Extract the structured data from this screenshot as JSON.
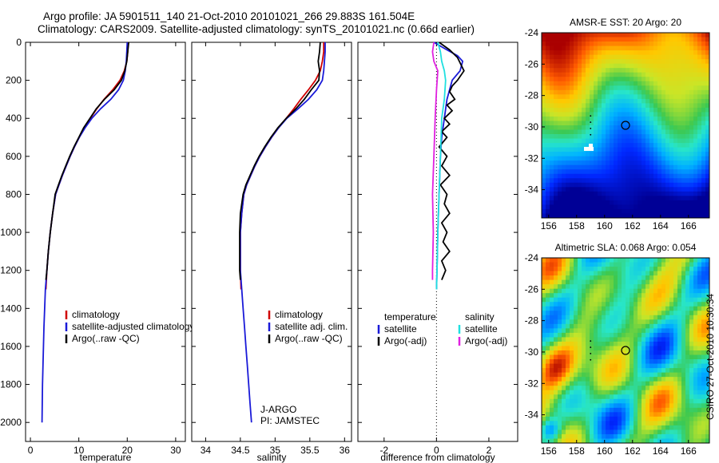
{
  "header": {
    "line1": "Argo profile: JA 5901511_140 21-Oct-2010 20101021_266 29.883S 161.504E",
    "line2": "Climatology: CARS2009. Satellite-adjusted climatology: synTS_20101021.nc (0.66d earlier)"
  },
  "credit": "CSIRO 27-Oct-2010 10:30:34",
  "colors": {
    "climatology": "#d00000",
    "satellite": "#1a1ad8",
    "argo": "#000000",
    "sal_satellite": "#20e0e0",
    "sal_argo": "#e020e0"
  },
  "chart_data": [
    {
      "type": "line",
      "id": "temperature",
      "xlabel": "temperature",
      "ylabel": "",
      "xlim": [
        -1,
        32
      ],
      "ylim": [
        2100,
        0
      ],
      "xticks": [
        "0",
        "10",
        "20",
        "30"
      ],
      "yticks": [
        "0",
        "200",
        "400",
        "600",
        "800",
        "1000",
        "1200",
        "1400",
        "1600",
        "1800",
        "2000"
      ],
      "legend": [
        "climatology",
        "satellite-adjusted climatology",
        "Argo(..raw -QC)"
      ],
      "series": [
        {
          "name": "climatology",
          "color": "#d00000",
          "points": [
            [
              20.2,
              0
            ],
            [
              20.1,
              50
            ],
            [
              19.9,
              100
            ],
            [
              19.4,
              150
            ],
            [
              18.5,
              200
            ],
            [
              17.0,
              250
            ],
            [
              15.2,
              300
            ],
            [
              13.7,
              350
            ],
            [
              12.4,
              400
            ],
            [
              11.2,
              450
            ],
            [
              10.1,
              500
            ],
            [
              9.1,
              550
            ],
            [
              8.2,
              600
            ],
            [
              7.4,
              650
            ],
            [
              6.6,
              700
            ],
            [
              5.9,
              750
            ],
            [
              5.2,
              800
            ],
            [
              4.6,
              900
            ],
            [
              4.1,
              1000
            ],
            [
              3.7,
              1100
            ],
            [
              3.4,
              1200
            ],
            [
              3.2,
              1300
            ]
          ]
        },
        {
          "name": "satellite-adjusted climatology",
          "color": "#1a1ad8",
          "points": [
            [
              20.0,
              0
            ],
            [
              19.9,
              50
            ],
            [
              19.8,
              100
            ],
            [
              19.6,
              150
            ],
            [
              19.2,
              200
            ],
            [
              18.2,
              250
            ],
            [
              16.6,
              300
            ],
            [
              14.5,
              350
            ],
            [
              12.7,
              400
            ],
            [
              11.3,
              450
            ],
            [
              10.1,
              500
            ],
            [
              9.1,
              550
            ],
            [
              8.2,
              600
            ],
            [
              7.4,
              650
            ],
            [
              6.6,
              700
            ],
            [
              5.9,
              750
            ],
            [
              5.2,
              800
            ],
            [
              4.6,
              900
            ],
            [
              4.1,
              1000
            ],
            [
              3.7,
              1100
            ],
            [
              3.4,
              1200
            ],
            [
              3.1,
              1300
            ],
            [
              2.95,
              1400
            ],
            [
              2.8,
              1500
            ],
            [
              2.7,
              1600
            ],
            [
              2.6,
              1700
            ],
            [
              2.5,
              1800
            ],
            [
              2.45,
              1900
            ],
            [
              2.4,
              2000
            ]
          ]
        },
        {
          "name": "Argo(..raw -QC)",
          "color": "#000000",
          "points": [
            [
              20.3,
              0
            ],
            [
              20.1,
              50
            ],
            [
              19.9,
              100
            ],
            [
              19.5,
              150
            ],
            [
              18.8,
              200
            ],
            [
              17.3,
              250
            ],
            [
              15.3,
              300
            ],
            [
              13.6,
              350
            ],
            [
              12.3,
              400
            ],
            [
              11.0,
              450
            ],
            [
              10.0,
              500
            ],
            [
              9.0,
              550
            ],
            [
              8.1,
              600
            ],
            [
              7.3,
              650
            ],
            [
              6.5,
              700
            ],
            [
              5.8,
              750
            ],
            [
              5.1,
              800
            ],
            [
              4.6,
              900
            ],
            [
              4.1,
              1000
            ],
            [
              3.7,
              1100
            ],
            [
              3.4,
              1200
            ],
            [
              3.2,
              1250
            ]
          ]
        }
      ]
    },
    {
      "type": "line",
      "id": "salinity",
      "xlabel": "salinity",
      "ylabel": "",
      "xlim": [
        33.8,
        36.1
      ],
      "ylim": [
        2100,
        0
      ],
      "xticks": [
        "34",
        "34.5",
        "35",
        "35.5",
        "36"
      ],
      "legend": [
        "climatology",
        "satellite adj. clim.",
        "Argo(..raw -QC)"
      ],
      "annotation": [
        "J-ARGO",
        "PI: JAMSTEC"
      ],
      "series": [
        {
          "name": "climatology",
          "color": "#d00000",
          "points": [
            [
              35.7,
              0
            ],
            [
              35.7,
              50
            ],
            [
              35.68,
              100
            ],
            [
              35.65,
              150
            ],
            [
              35.58,
              200
            ],
            [
              35.48,
              250
            ],
            [
              35.37,
              300
            ],
            [
              35.27,
              350
            ],
            [
              35.16,
              400
            ],
            [
              35.05,
              450
            ],
            [
              34.95,
              500
            ],
            [
              34.86,
              550
            ],
            [
              34.78,
              600
            ],
            [
              34.71,
              650
            ],
            [
              34.65,
              700
            ],
            [
              34.59,
              750
            ],
            [
              34.55,
              800
            ],
            [
              34.52,
              900
            ],
            [
              34.5,
              1000
            ],
            [
              34.5,
              1100
            ],
            [
              34.5,
              1200
            ],
            [
              34.51,
              1300
            ]
          ]
        },
        {
          "name": "satellite adj. clim.",
          "color": "#1a1ad8",
          "points": [
            [
              35.72,
              0
            ],
            [
              35.72,
              50
            ],
            [
              35.71,
              100
            ],
            [
              35.7,
              150
            ],
            [
              35.68,
              200
            ],
            [
              35.6,
              250
            ],
            [
              35.48,
              300
            ],
            [
              35.33,
              350
            ],
            [
              35.17,
              400
            ],
            [
              35.05,
              450
            ],
            [
              34.95,
              500
            ],
            [
              34.86,
              550
            ],
            [
              34.78,
              600
            ],
            [
              34.71,
              650
            ],
            [
              34.65,
              700
            ],
            [
              34.59,
              750
            ],
            [
              34.55,
              800
            ],
            [
              34.52,
              900
            ],
            [
              34.5,
              1000
            ],
            [
              34.5,
              1100
            ],
            [
              34.5,
              1200
            ],
            [
              34.52,
              1300
            ],
            [
              34.54,
              1400
            ],
            [
              34.56,
              1500
            ],
            [
              34.58,
              1600
            ],
            [
              34.6,
              1700
            ],
            [
              34.62,
              1800
            ],
            [
              34.64,
              1900
            ],
            [
              34.66,
              2000
            ]
          ]
        },
        {
          "name": "Argo(..raw -QC)",
          "color": "#000000",
          "points": [
            [
              35.65,
              0
            ],
            [
              35.64,
              50
            ],
            [
              35.62,
              100
            ],
            [
              35.64,
              150
            ],
            [
              35.63,
              200
            ],
            [
              35.52,
              250
            ],
            [
              35.42,
              300
            ],
            [
              35.3,
              350
            ],
            [
              35.16,
              400
            ],
            [
              35.04,
              450
            ],
            [
              34.94,
              500
            ],
            [
              34.85,
              550
            ],
            [
              34.77,
              600
            ],
            [
              34.7,
              650
            ],
            [
              34.64,
              700
            ],
            [
              34.58,
              750
            ],
            [
              34.54,
              800
            ],
            [
              34.5,
              900
            ],
            [
              34.49,
              1000
            ],
            [
              34.49,
              1100
            ],
            [
              34.49,
              1200
            ],
            [
              34.5,
              1250
            ]
          ]
        }
      ]
    },
    {
      "type": "line",
      "id": "difference",
      "xlabel": "difference from climatology",
      "ylabel": "",
      "xlim": [
        -3,
        3.1
      ],
      "ylim": [
        2100,
        0
      ],
      "xticks": [
        "-2",
        "0",
        "2"
      ],
      "legend_temperature_title": "temperature",
      "legend_salinity_title": "salinity",
      "legend_temperature": [
        "satellite",
        "Argo(-adj)"
      ],
      "legend_salinity": [
        "satellite",
        "Argo(-adj)"
      ],
      "series": [
        {
          "name": "temperature satellite",
          "color": "#1a1ad8",
          "points": [
            [
              -0.1,
              0
            ],
            [
              0.4,
              40
            ],
            [
              0.8,
              70
            ],
            [
              1.0,
              100
            ],
            [
              0.9,
              150
            ],
            [
              0.6,
              200
            ],
            [
              0.4,
              300
            ],
            [
              0.3,
              400
            ],
            [
              0.2,
              500
            ],
            [
              0.15,
              600
            ],
            [
              0.1,
              800
            ],
            [
              0.05,
              1000
            ],
            [
              0.02,
              1200
            ],
            [
              0.0,
              1300
            ]
          ]
        },
        {
          "name": "temperature Argo(-adj)",
          "color": "#000000",
          "points": [
            [
              0.1,
              0
            ],
            [
              0.5,
              40
            ],
            [
              0.8,
              80
            ],
            [
              1.05,
              150
            ],
            [
              0.8,
              200
            ],
            [
              0.6,
              230
            ],
            [
              0.5,
              260
            ],
            [
              0.7,
              300
            ],
            [
              0.4,
              330
            ],
            [
              0.6,
              360
            ],
            [
              0.3,
              400
            ],
            [
              0.5,
              430
            ],
            [
              0.2,
              470
            ],
            [
              0.4,
              500
            ],
            [
              0.1,
              550
            ],
            [
              0.4,
              600
            ],
            [
              0.2,
              650
            ],
            [
              0.5,
              700
            ],
            [
              0.15,
              750
            ],
            [
              0.4,
              800
            ],
            [
              0.3,
              850
            ],
            [
              0.5,
              900
            ],
            [
              0.2,
              950
            ],
            [
              0.4,
              1000
            ],
            [
              0.25,
              1050
            ],
            [
              0.5,
              1100
            ],
            [
              0.2,
              1150
            ],
            [
              0.35,
              1200
            ],
            [
              0.2,
              1250
            ]
          ]
        },
        {
          "name": "salinity satellite",
          "color": "#20e0e0",
          "points": [
            [
              0.05,
              0
            ],
            [
              0.15,
              50
            ],
            [
              0.2,
              100
            ],
            [
              0.3,
              150
            ],
            [
              0.35,
              200
            ],
            [
              0.3,
              300
            ],
            [
              0.2,
              400
            ],
            [
              0.15,
              600
            ],
            [
              0.1,
              800
            ],
            [
              0.05,
              1000
            ],
            [
              0.02,
              1200
            ],
            [
              0.0,
              1300
            ]
          ]
        },
        {
          "name": "salinity Argo(-adj)",
          "color": "#e020e0",
          "points": [
            [
              -0.1,
              0
            ],
            [
              -0.15,
              50
            ],
            [
              -0.1,
              100
            ],
            [
              0.05,
              150
            ],
            [
              0.0,
              250
            ],
            [
              -0.05,
              400
            ],
            [
              -0.1,
              600
            ],
            [
              -0.15,
              800
            ],
            [
              -0.12,
              1000
            ],
            [
              -0.15,
              1200
            ],
            [
              -0.15,
              1250
            ]
          ]
        }
      ]
    },
    {
      "type": "heatmap",
      "id": "sst-map",
      "title": "AMSR-E SST: 20 Argo: 20",
      "xlim": [
        155.5,
        167.5
      ],
      "ylim": [
        -35.8,
        -24
      ],
      "xticks": [
        "156",
        "158",
        "160",
        "162",
        "164",
        "166"
      ],
      "yticks": [
        "-24",
        "-26",
        "-28",
        "-30",
        "-32",
        "-34"
      ],
      "argo_position": [
        161.5,
        -29.9
      ]
    },
    {
      "type": "heatmap",
      "id": "sla-map",
      "title": "Altimetric SLA: 0.068 Argo: 0.054",
      "xlim": [
        155.5,
        167.5
      ],
      "ylim": [
        -35.8,
        -24
      ],
      "xticks": [
        "156",
        "158",
        "160",
        "162",
        "164",
        "166"
      ],
      "yticks": [
        "-24",
        "-26",
        "-28",
        "-30",
        "-32",
        "-34"
      ],
      "argo_position": [
        161.5,
        -29.9
      ]
    }
  ]
}
